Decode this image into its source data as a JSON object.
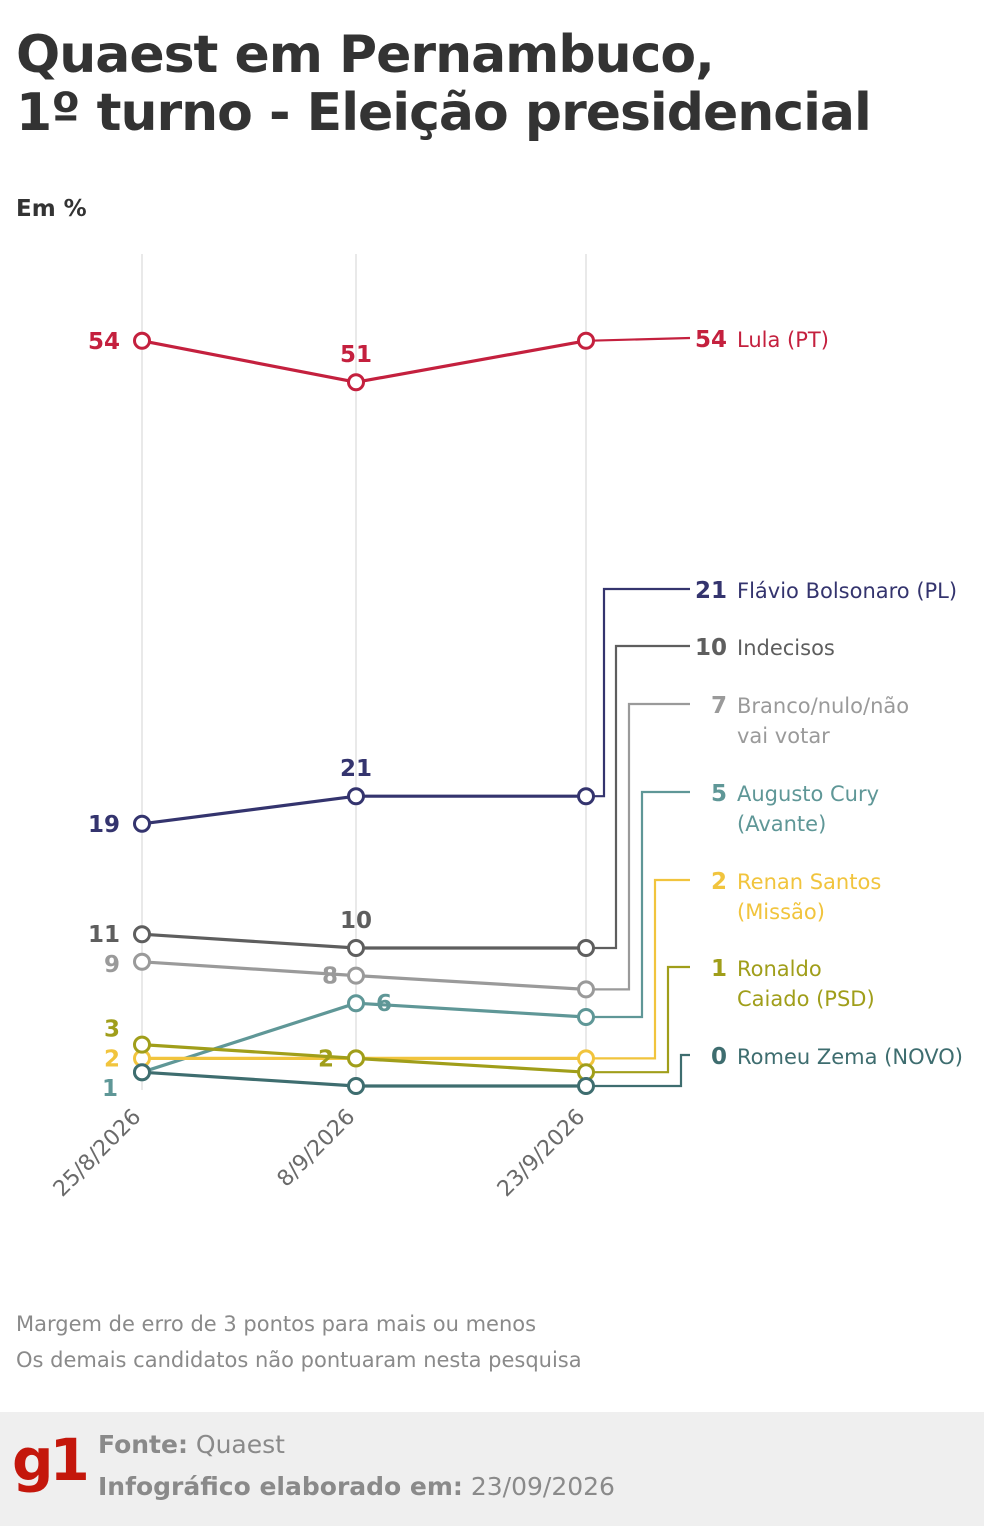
{
  "title_line1": "Quaest em Pernambuco,",
  "title_line2": "1º turno - Eleição presidencial",
  "unit": "Em %",
  "notes": [
    "Margem de erro de 3 pontos para mais ou menos",
    "Os demais candidatos não pontuaram nesta pesquisa"
  ],
  "footer": {
    "logo": "g1",
    "source_label": "Fonte:",
    "source_value": "Quaest",
    "made_label": "Infográfico elaborado em:",
    "made_value": "23/09/2026"
  },
  "chart_data": {
    "type": "line",
    "x": [
      "25/8/2026",
      "8/9/2026",
      "23/9/2026"
    ],
    "series": [
      {
        "name": "Lula (PT)",
        "values": [
          54,
          51,
          54
        ],
        "color": "#c4203e",
        "labels": [
          "54",
          "51",
          ""
        ],
        "end_label": "54"
      },
      {
        "name": "Flávio Bolsonaro (PL)",
        "values": [
          19,
          21,
          21
        ],
        "color": "#34346e",
        "labels": [
          "19",
          "21",
          ""
        ],
        "end_label": "21"
      },
      {
        "name": "Indecisos",
        "values": [
          11,
          10,
          10
        ],
        "color": "#5e5e5e",
        "labels": [
          "11",
          "10",
          ""
        ],
        "end_label": "10"
      },
      {
        "name": "Branco/nulo/não vai votar",
        "values": [
          9,
          8,
          7
        ],
        "color": "#9a9a9a",
        "labels": [
          "9",
          "8",
          ""
        ],
        "end_label": "7"
      },
      {
        "name": "Augusto Cury (Avante)",
        "values": [
          1,
          6,
          5
        ],
        "color": "#5f9797",
        "labels": [
          "1",
          "6",
          ""
        ],
        "end_label": "5"
      },
      {
        "name": "Renan Santos (Missão)",
        "values": [
          2,
          2,
          2
        ],
        "color": "#f1c43d",
        "labels": [
          "2",
          "",
          ""
        ],
        "end_label": "2"
      },
      {
        "name": "Ronaldo Caiado (PSD)",
        "values": [
          3,
          2,
          1
        ],
        "color": "#a09e1a",
        "labels": [
          "3",
          "2",
          ""
        ],
        "end_label": "1"
      },
      {
        "name": "Romeu Zema (NOVO)",
        "values": [
          1,
          0,
          0
        ],
        "color": "#3e6d6f",
        "labels": [
          "",
          "",
          ""
        ],
        "end_label": "0"
      }
    ],
    "legend_lines": [
      [
        "Lula (PT)"
      ],
      [
        "Flávio Bolsonaro (PL)"
      ],
      [
        "Indecisos"
      ],
      [
        "Branco/nulo/não",
        "vai votar"
      ],
      [
        "Augusto Cury",
        "(Avante)"
      ],
      [
        "Renan Santos",
        "(Missão)"
      ],
      [
        "Ronaldo",
        "Caiado (PSD)"
      ],
      [
        "Romeu Zema (NOVO)"
      ]
    ],
    "grid": true,
    "legend": "right"
  }
}
